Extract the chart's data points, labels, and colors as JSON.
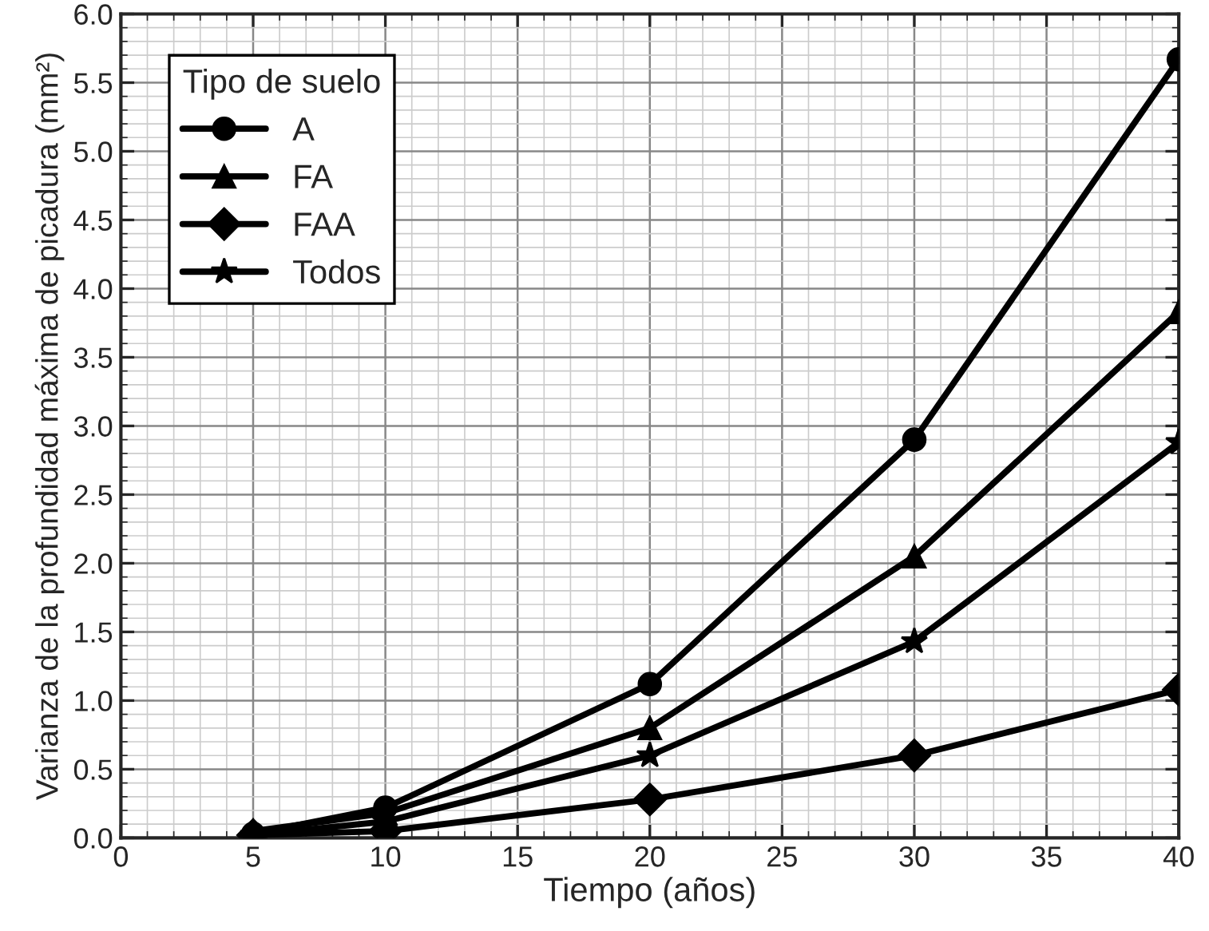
{
  "chart_data": {
    "type": "line",
    "xlabel": "Tiempo (años)",
    "ylabel": "Varianza de la profundidad máxima de picadura (mm²)",
    "legend_title": "Tipo de suelo",
    "legend": "top left",
    "grid": true,
    "line_style": "solid",
    "x": [
      5,
      10,
      20,
      30,
      40
    ],
    "series": [
      {
        "name": "A",
        "color": "#000000",
        "marker": "circle",
        "values": [
          0.03,
          0.22,
          1.12,
          2.9,
          5.67
        ]
      },
      {
        "name": "FA",
        "color": "#000000",
        "marker": "triangle",
        "values": [
          0.05,
          0.18,
          0.8,
          2.05,
          3.83
        ]
      },
      {
        "name": "FAA",
        "color": "#000000",
        "marker": "diamond",
        "values": [
          0.02,
          0.05,
          0.28,
          0.6,
          1.08
        ]
      },
      {
        "name": "Todos",
        "color": "#000000",
        "marker": "star",
        "values": [
          0.02,
          0.12,
          0.6,
          1.43,
          2.88
        ]
      }
    ],
    "xlim": [
      0,
      40
    ],
    "xticks": [
      0,
      5,
      10,
      15,
      20,
      25,
      30,
      35,
      40
    ],
    "ylim": [
      0,
      6
    ],
    "yticks": [
      {
        "value": 0,
        "label": "0.0"
      },
      {
        "value": 0.5,
        "label": "0.5"
      },
      {
        "value": 1,
        "label": "1.0"
      },
      {
        "value": 1.5,
        "label": "1.5"
      },
      {
        "value": 2,
        "label": "2.0"
      },
      {
        "value": 2.5,
        "label": "2.5"
      },
      {
        "value": 3,
        "label": "3.0"
      },
      {
        "value": 3.5,
        "label": "3.5"
      },
      {
        "value": 4,
        "label": "4.0"
      },
      {
        "value": 4.5,
        "label": "4.5"
      },
      {
        "value": 5,
        "label": "5.0"
      },
      {
        "value": 5.5,
        "label": "5.5"
      },
      {
        "value": 6,
        "label": "6.0"
      }
    ]
  }
}
